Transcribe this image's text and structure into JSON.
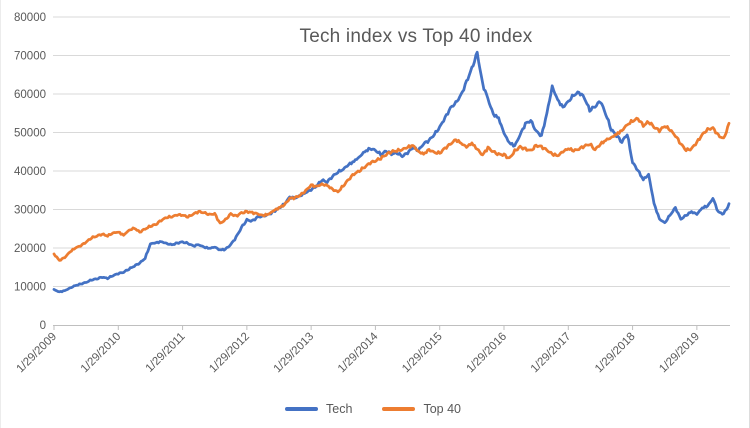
{
  "chart_data": {
    "type": "line",
    "title": "Tech index vs Top 40 index",
    "x_tick_labels": [
      "1/29/2009",
      "1/29/2010",
      "1/29/2011",
      "1/29/2012",
      "1/29/2013",
      "1/29/2014",
      "1/29/2015",
      "1/29/2016",
      "1/29/2017",
      "1/29/2018",
      "1/29/2019"
    ],
    "y_tick_labels": [
      "0",
      "10000",
      "20000",
      "30000",
      "40000",
      "50000",
      "60000",
      "70000",
      "80000"
    ],
    "y_ticks": [
      0,
      10000,
      20000,
      30000,
      40000,
      50000,
      60000,
      70000,
      80000
    ],
    "ylim": [
      0,
      80000
    ],
    "x_unit": "monthly points from 1/2009 through 7/2019 (values estimated from plot)",
    "grid": "horizontal",
    "legend_position": "bottom-center",
    "series": [
      {
        "name": "Tech",
        "color": "#4472C4",
        "values": [
          9200,
          8600,
          8900,
          9600,
          10200,
          10600,
          11000,
          11600,
          11900,
          12300,
          12000,
          12700,
          13200,
          13600,
          14400,
          15200,
          16000,
          17200,
          21000,
          21300,
          21600,
          21200,
          20800,
          21300,
          21600,
          21200,
          20600,
          20900,
          20300,
          20000,
          20300,
          19600,
          19800,
          21000,
          23000,
          25500,
          27500,
          27200,
          28200,
          28500,
          28800,
          29600,
          30500,
          31500,
          33300,
          33000,
          33600,
          34400,
          35000,
          36000,
          37500,
          37000,
          38500,
          39500,
          40300,
          41500,
          42300,
          43500,
          44800,
          45600,
          45200,
          44000,
          45000,
          44200,
          44500,
          43700,
          44500,
          46000,
          45200,
          47000,
          48000,
          49500,
          51500,
          54000,
          56500,
          58000,
          60000,
          63500,
          67000,
          71000,
          63000,
          59000,
          55000,
          54000,
          50000,
          47500,
          46700,
          49500,
          52500,
          53200,
          50500,
          49200,
          55000,
          62000,
          58500,
          56500,
          58000,
          59500,
          60300,
          58800,
          55500,
          56500,
          57800,
          54500,
          50500,
          48900,
          47300,
          49300,
          42000,
          40000,
          37600,
          39000,
          31500,
          27500,
          26500,
          28500,
          30500,
          27500,
          28500,
          29500,
          28800,
          30500,
          31000,
          33000,
          29500,
          29000,
          31500
        ]
      },
      {
        "name": "Top 40",
        "color": "#ED7D31",
        "values": [
          18500,
          16800,
          17500,
          19000,
          20000,
          20500,
          21500,
          22500,
          23000,
          23500,
          23000,
          23800,
          24000,
          23200,
          24500,
          25000,
          24000,
          24800,
          25500,
          26000,
          27000,
          27800,
          28000,
          28500,
          28500,
          28000,
          28800,
          29500,
          29200,
          28800,
          29000,
          26500,
          27500,
          29000,
          28500,
          29300,
          29600,
          29400,
          29000,
          28600,
          28900,
          29800,
          30600,
          31300,
          33000,
          33200,
          33800,
          35000,
          36400,
          36000,
          36600,
          36200,
          35200,
          34500,
          36000,
          37700,
          39000,
          39800,
          40800,
          41800,
          42400,
          43000,
          44000,
          44800,
          45000,
          45400,
          46000,
          46500,
          45000,
          44300,
          45500,
          44800,
          44600,
          46000,
          47000,
          48200,
          47300,
          46300,
          47400,
          45800,
          44300,
          46300,
          45200,
          44600,
          44500,
          43500,
          45500,
          46500,
          46000,
          45500,
          46800,
          46500,
          45500,
          44500,
          44000,
          45000,
          45800,
          45200,
          45600,
          46400,
          46800,
          45400,
          46800,
          47800,
          48500,
          49300,
          50300,
          51800,
          52700,
          53400,
          51500,
          52500,
          51200,
          50200,
          51500,
          50500,
          49000,
          47000,
          45300,
          45800,
          47500,
          49500,
          51000,
          51300,
          49500,
          48600,
          52400
        ]
      }
    ]
  },
  "colors": {
    "tech_blue": "#4472C4",
    "top40_orange": "#ED7D31",
    "gridline": "#D9D9D9",
    "axis_line": "#BFBFBF",
    "label_text": "#595959"
  }
}
